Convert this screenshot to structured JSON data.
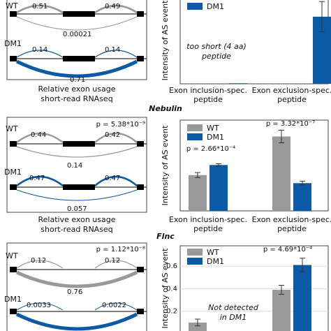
{
  "colors": {
    "wt": "#999999",
    "dm1": "#0b5aa5",
    "black": "#000000"
  },
  "legend": {
    "wt": "WT",
    "dm1": "DM1"
  },
  "sections": [
    {
      "gene": "",
      "wt_label": "WT",
      "dm1_label": "DM1",
      "wt_arcs": {
        "left": "0.51",
        "right": "0.49",
        "skip": "0.00021"
      },
      "dm1_arcs": {
        "left": "0.14",
        "right": "0.14",
        "skip": "0.71"
      },
      "wt_p": "",
      "usage_caption": [
        "Relative exon usage",
        "short-read RNAseq"
      ]
    },
    {
      "gene": "Nebulin",
      "wt_label": "WT",
      "dm1_label": "DM1",
      "wt_arcs": {
        "left": "0.44",
        "right": "0.42",
        "skip": "0.14"
      },
      "dm1_arcs": {
        "left": "0.47",
        "right": "0.47",
        "skip": "0.057"
      },
      "wt_p": "p = 5.38*10⁻⁹",
      "usage_caption": [
        "Relative exon usage",
        "short-read RNAseq"
      ]
    },
    {
      "gene": "Flnc",
      "wt_label": "WT",
      "dm1_label": "DM1",
      "wt_arcs": {
        "left": "0.12",
        "right": "0.12",
        "skip": "0.76"
      },
      "dm1_arcs": {
        "left": "0.0033",
        "right": "0.0022",
        "skip": ""
      },
      "wt_p": "p = 1.12*10⁻⁸",
      "usage_caption": []
    }
  ],
  "chart_data": [
    {
      "type": "bar",
      "categories": [
        "Exon inclusion-spec. peptide",
        "Exon exclusion-spec. peptide"
      ],
      "series": [
        {
          "name": "DM1",
          "values": [
            0.0,
            1.55
          ],
          "errors": [
            0.0,
            0.35
          ]
        }
      ],
      "ylabel": "Intensity of AS event",
      "ylim": [
        0,
        2.0
      ],
      "annotations": [
        "too short (4 aa)",
        "peptide"
      ],
      "p_values": []
    },
    {
      "type": "bar",
      "categories": [
        "Exon inclusion-spec. peptide",
        "Exon exclusion-spec. peptide"
      ],
      "series": [
        {
          "name": "WT",
          "values": [
            1.42,
            2.95
          ],
          "errors": [
            0.1,
            0.25
          ]
        },
        {
          "name": "DM1",
          "values": [
            1.82,
            1.1
          ],
          "errors": [
            0.05,
            0.08
          ]
        }
      ],
      "ylabel": "Intensity of AS event",
      "ylim": [
        0,
        3.6
      ],
      "p_values": [
        "p = 2.66*10⁻⁴",
        "p = 3.32*10⁻⁷"
      ]
    },
    {
      "type": "bar",
      "categories": [
        "",
        ""
      ],
      "series": [
        {
          "name": "WT",
          "values": [
            0.1,
            0.39
          ],
          "errors": [
            0.03,
            0.04
          ]
        },
        {
          "name": "DM1",
          "values": [
            null,
            0.61
          ],
          "errors": [
            0,
            0.06
          ]
        }
      ],
      "ylabel": "Intensity of AS event",
      "ylim": [
        0,
        0.78
      ],
      "yticks": [
        "0.2",
        "0.4",
        "0.6"
      ],
      "annotations": [
        "Not detected",
        "in DM1"
      ],
      "p_values": [
        "p = 4.69*10⁻⁴"
      ]
    }
  ]
}
